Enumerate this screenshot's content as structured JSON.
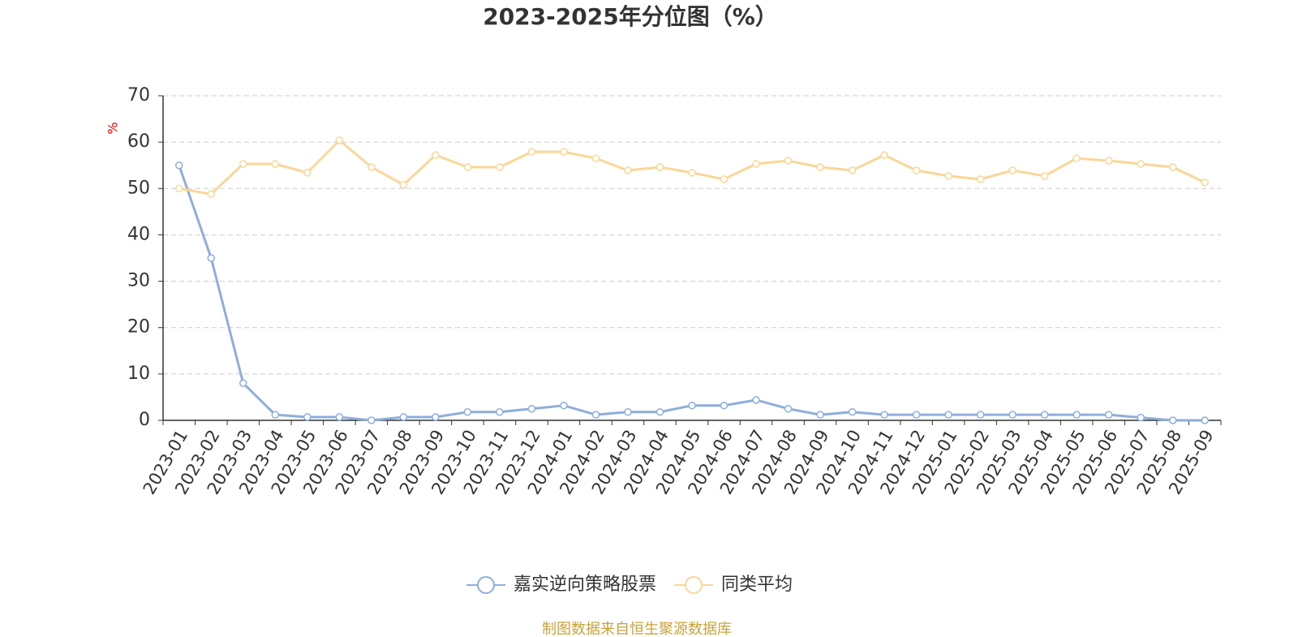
{
  "chart_data": {
    "type": "line",
    "title": "2023-2025年分位图（%）",
    "y_label": "%",
    "categories": [
      "2023-01",
      "2023-02",
      "2023-03",
      "2023-04",
      "2023-05",
      "2023-06",
      "2023-07",
      "2023-08",
      "2023-09",
      "2023-10",
      "2023-11",
      "2023-12",
      "2024-01",
      "2024-02",
      "2024-03",
      "2024-04",
      "2024-05",
      "2024-06",
      "2024-07",
      "2024-08",
      "2024-09",
      "2024-10",
      "2024-11",
      "2024-12",
      "2025-01",
      "2025-02",
      "2025-03",
      "2025-04",
      "2025-05",
      "2025-06",
      "2025-07",
      "2025-08",
      "2025-09"
    ],
    "series": [
      {
        "name": "嘉实逆向策略股票",
        "color": "#8eaedb",
        "values": [
          55,
          35,
          8,
          1.2,
          0.7,
          0.7,
          0,
          0.7,
          0.7,
          1.8,
          1.8,
          2.5,
          3.2,
          1.2,
          1.8,
          1.8,
          3.2,
          3.2,
          4.4,
          2.5,
          1.2,
          1.8,
          1.2,
          1.2,
          1.2,
          1.2,
          1.2,
          1.2,
          1.2,
          1.2,
          0.6,
          0,
          0
        ]
      },
      {
        "name": "同类平均",
        "color": "#fad797",
        "values": [
          50,
          48.8,
          55.3,
          55.3,
          53.4,
          60.4,
          54.6,
          50.8,
          57.2,
          54.6,
          54.6,
          57.9,
          57.9,
          56.5,
          53.9,
          54.6,
          53.4,
          52,
          55.3,
          56,
          54.6,
          53.9,
          57.2,
          53.9,
          52.7,
          52,
          53.9,
          52.7,
          56.5,
          56,
          55.3,
          54.6,
          51.3
        ]
      }
    ],
    "ylim": [
      0,
      70
    ],
    "yticks": [
      0,
      10,
      20,
      30,
      40,
      50,
      60,
      70
    ],
    "grid": true,
    "source": "制图数据来自恒生聚源数据库"
  }
}
